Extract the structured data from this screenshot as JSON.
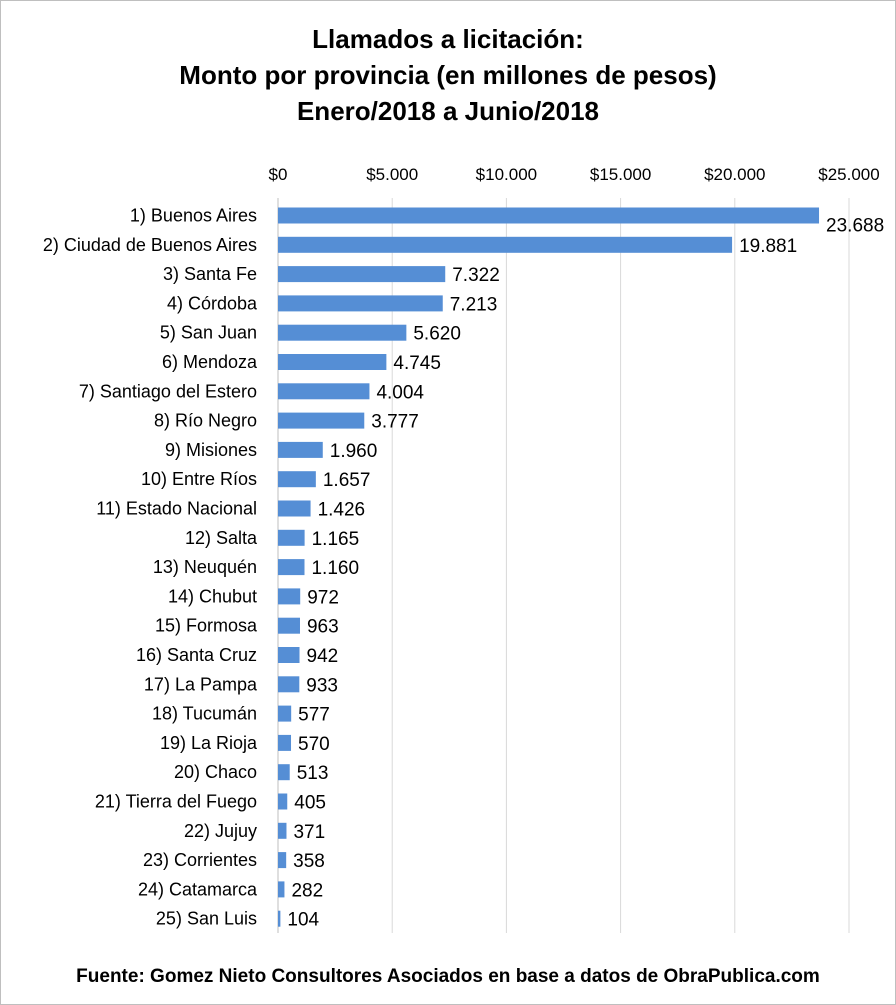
{
  "chart_data": {
    "type": "bar",
    "orientation": "horizontal",
    "title": [
      "Llamados a licitación:",
      "Monto por provincia (en millones de pesos)",
      "Enero/2018 a Junio/2018"
    ],
    "xlim": [
      0,
      25000
    ],
    "x_ticks": [
      0,
      5000,
      10000,
      15000,
      20000,
      25000
    ],
    "x_tick_labels": [
      "$0",
      "$5.000",
      "$10.000",
      "$15.000",
      "$20.000",
      "$25.000"
    ],
    "x_axis_position": "top",
    "grid": "vertical",
    "bar_color": "#558ed5",
    "categories": [
      "1) Buenos Aires",
      "2) Ciudad de Buenos Aires",
      "3) Santa Fe",
      "4) Córdoba",
      "5) San Juan",
      "6) Mendoza",
      "7) Santiago del Estero",
      "8) Río Negro",
      "9) Misiones",
      "10) Entre Ríos",
      "11) Estado Nacional",
      "12) Salta",
      "13) Neuquén",
      "14) Chubut",
      "15) Formosa",
      "16) Santa Cruz",
      "17) La Pampa",
      "18) Tucumán",
      "19) La Rioja",
      "20) Chaco",
      "21) Tierra del Fuego",
      "22) Jujuy",
      "23) Corrientes",
      "24) Catamarca",
      "25) San Luis"
    ],
    "values": [
      23688,
      19881,
      7322,
      7213,
      5620,
      4745,
      4004,
      3777,
      1960,
      1657,
      1426,
      1165,
      1160,
      972,
      963,
      942,
      933,
      577,
      570,
      513,
      405,
      371,
      358,
      282,
      104
    ],
    "value_labels": [
      "23.688",
      "19.881",
      "7.322",
      "7.213",
      "5.620",
      "4.745",
      "4.004",
      "3.777",
      "1.960",
      "1.657",
      "1.426",
      "1.165",
      "1.160",
      "972",
      "963",
      "942",
      "933",
      "577",
      "570",
      "513",
      "405",
      "371",
      "358",
      "282",
      "104"
    ],
    "source": "Fuente: Gomez Nieto Consultores Asociados en base a datos de ObraPublica.com"
  }
}
